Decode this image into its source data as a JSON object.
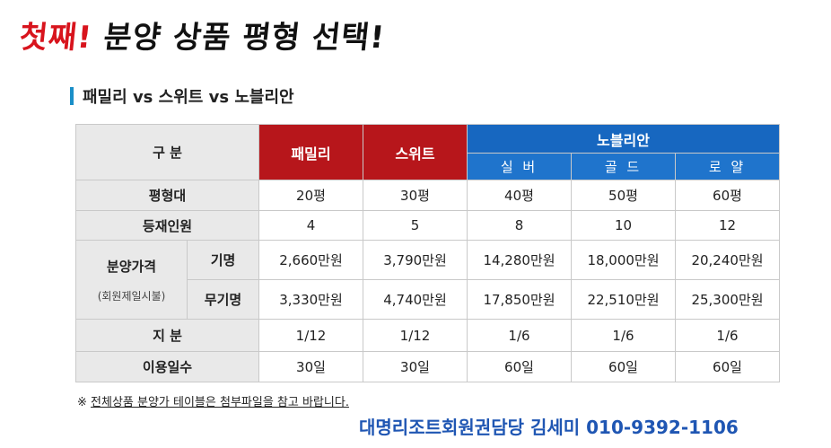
{
  "headline": {
    "part1": "첫째!",
    "part2": " 분양 상품 평형 선택!"
  },
  "section_title": "패밀리 vs 스위트 vs 노블리안",
  "table": {
    "corner": "구 분",
    "family": "패밀리",
    "suite": "스위트",
    "noblian": "노블리안",
    "sub": [
      "실 버",
      "골 드",
      "로 얄"
    ],
    "rows": {
      "size": {
        "label": "평형대",
        "values": [
          "20평",
          "30평",
          "40평",
          "50평",
          "60평"
        ]
      },
      "capacity": {
        "label": "등재인원",
        "values": [
          "4",
          "5",
          "8",
          "10",
          "12"
        ]
      },
      "price_label": "분양가격",
      "price_note": "(회원제일시불)",
      "named": {
        "label": "기명",
        "values": [
          "2,660만원",
          "3,790만원",
          "14,280만원",
          "18,000만원",
          "20,240만원"
        ]
      },
      "unnamed": {
        "label": "무기명",
        "values": [
          "3,330만원",
          "4,740만원",
          "17,850만원",
          "22,510만원",
          "25,300만원"
        ]
      },
      "share": {
        "label": "지 분",
        "values": [
          "1/12",
          "1/12",
          "1/6",
          "1/6",
          "1/6"
        ]
      },
      "days": {
        "label": "이용일수",
        "values": [
          "30일",
          "30일",
          "60일",
          "60일",
          "60일"
        ]
      }
    }
  },
  "note": {
    "prefix": "※ ",
    "text": "전체상품 분양가 테이블은 첨부파일을 참고 바랍니다."
  },
  "contact": "대명리조트회원권담당 김세미 010-9392-1106"
}
